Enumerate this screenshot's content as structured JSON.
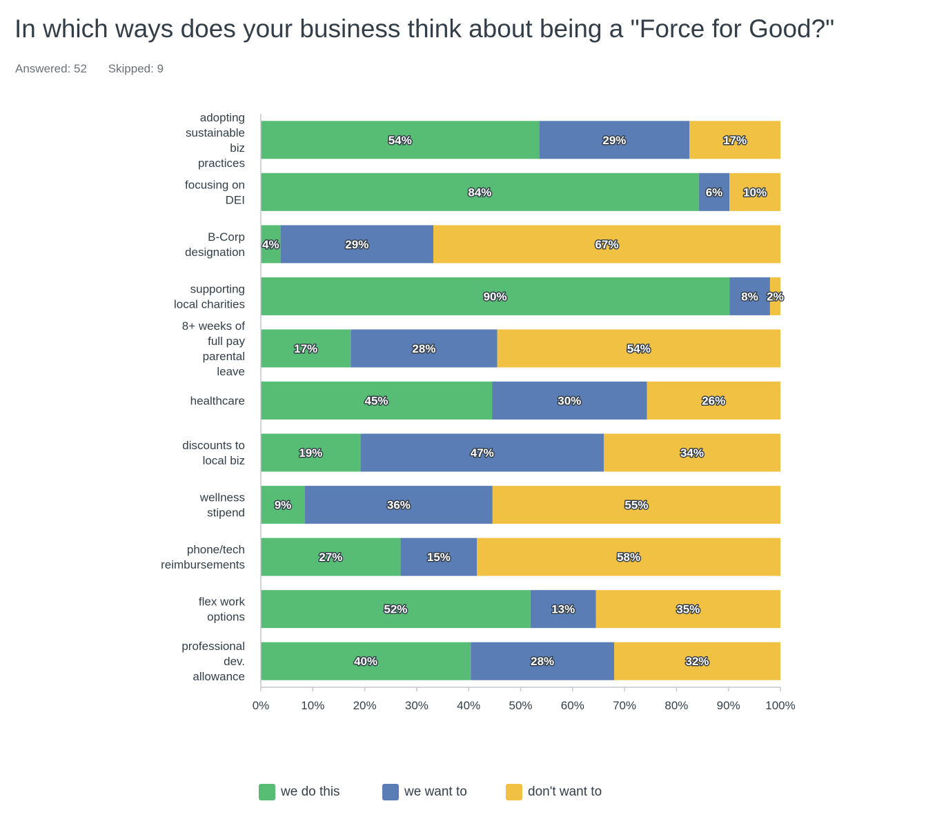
{
  "header": {
    "title": "In which ways does your business think about being a \"Force for Good?\"",
    "answered": "Answered: 52",
    "skipped": "Skipped: 9"
  },
  "colors": {
    "we_do_this": "#57bd75",
    "we_want_to": "#5b7db5",
    "dont_want_to": "#f0c142",
    "axis": "#c4c9cd",
    "text": "#333e48"
  },
  "chart_data": {
    "type": "bar",
    "orientation": "horizontal",
    "stacked": true,
    "categories": [
      "adopting sustainable biz practices",
      "focusing on DEI",
      "B-Corp designation",
      "supporting local charities",
      "8+ weeks of full pay parental leave",
      "healthcare",
      "discounts to local biz",
      "wellness stipend",
      "phone/tech reimbursements",
      "flex work options",
      "professional dev. allowance"
    ],
    "category_lines": [
      [
        "adopting",
        "sustainable",
        "biz",
        "practices"
      ],
      [
        "focusing on",
        "DEI"
      ],
      [
        "B-Corp",
        "designation"
      ],
      [
        "supporting",
        "local charities"
      ],
      [
        "8+ weeks of",
        "full pay",
        "parental",
        "leave"
      ],
      [
        "healthcare"
      ],
      [
        "discounts to",
        "local biz"
      ],
      [
        "wellness",
        "stipend"
      ],
      [
        "phone/tech",
        "reimbursements"
      ],
      [
        "flex work",
        "options"
      ],
      [
        "professional",
        "dev.",
        "allowance"
      ]
    ],
    "series": [
      {
        "name": "we do this",
        "values": [
          53.6,
          84.3,
          3.8,
          90.2,
          17.3,
          44.5,
          19.2,
          8.5,
          26.9,
          51.9,
          40.4
        ],
        "labels": [
          "54%",
          "84%",
          "4%",
          "90%",
          "17%",
          "45%",
          "19%",
          "9%",
          "27%",
          "52%",
          "40%"
        ]
      },
      {
        "name": "we want to",
        "values": [
          28.9,
          5.9,
          29.4,
          7.8,
          28.2,
          29.8,
          46.8,
          36.1,
          14.7,
          12.6,
          27.6
        ],
        "labels": [
          "29%",
          "6%",
          "29%",
          "8%",
          "28%",
          "30%",
          "47%",
          "36%",
          "15%",
          "13%",
          "28%"
        ]
      },
      {
        "name": "don't want to",
        "values": [
          17.5,
          9.8,
          66.8,
          2.0,
          54.5,
          25.7,
          34.0,
          55.4,
          58.4,
          35.5,
          32.0
        ],
        "labels": [
          "17%",
          "10%",
          "67%",
          "2%",
          "54%",
          "26%",
          "34%",
          "55%",
          "58%",
          "35%",
          "32%"
        ]
      }
    ],
    "xlim": [
      0,
      100
    ],
    "xticks": [
      "0%",
      "10%",
      "20%",
      "30%",
      "40%",
      "50%",
      "60%",
      "70%",
      "80%",
      "90%",
      "100%"
    ],
    "grid": false,
    "legend_position": "bottom"
  }
}
